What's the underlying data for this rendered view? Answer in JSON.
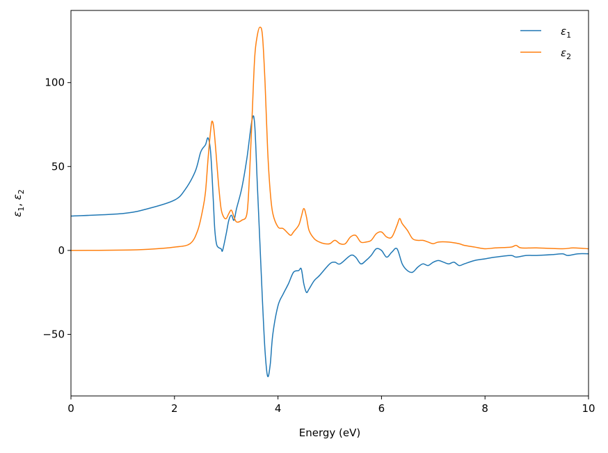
{
  "chart_data": {
    "type": "line",
    "title": "",
    "xlabel": "Energy (eV)",
    "ylabel": "ε1, ε2",
    "ylabel_parts": {
      "a": "ε",
      "a_sub": "1",
      "sep": ", ",
      "b": "ε",
      "b_sub": "2"
    },
    "xlim": [
      0,
      10
    ],
    "ylim": [
      -86.7,
      143
    ],
    "xticks": [
      0,
      2,
      4,
      6,
      8,
      10
    ],
    "yticks": [
      -50,
      0,
      50,
      100
    ],
    "ytick_labels": [
      "−50",
      "0",
      "50",
      "100"
    ],
    "grid": false,
    "legend_position": "top-right",
    "series": [
      {
        "name": "ε1",
        "name_base": "ε",
        "name_sub": "1",
        "color": "#1f77b4",
        "x": [
          0,
          1,
          1.5,
          2,
          2.2,
          2.4,
          2.5,
          2.55,
          2.6,
          2.65,
          2.7,
          2.75,
          2.78,
          2.82,
          2.9,
          2.93,
          3.0,
          3.05,
          3.1,
          3.15,
          3.2,
          3.3,
          3.4,
          3.5,
          3.55,
          3.6,
          3.65,
          3.7,
          3.75,
          3.8,
          3.85,
          3.9,
          4.0,
          4.1,
          4.2,
          4.3,
          4.4,
          4.45,
          4.5,
          4.55,
          4.6,
          4.7,
          4.8,
          5.0,
          5.1,
          5.2,
          5.4,
          5.5,
          5.6,
          5.7,
          5.8,
          5.9,
          6.0,
          6.1,
          6.2,
          6.3,
          6.4,
          6.5,
          6.6,
          6.7,
          6.8,
          6.9,
          7.0,
          7.1,
          7.2,
          7.3,
          7.4,
          7.5,
          7.6,
          7.8,
          8.0,
          8.2,
          8.5,
          8.6,
          8.8,
          9.0,
          9.3,
          9.5,
          9.6,
          9.8,
          10
        ],
        "y": [
          20.5,
          22,
          25,
          30,
          36,
          47,
          58,
          61,
          63,
          67,
          58,
          30,
          12,
          3,
          1,
          0,
          10,
          18,
          21,
          18,
          25,
          37,
          55,
          78,
          75,
          40,
          5,
          -30,
          -60,
          -75,
          -68,
          -50,
          -33,
          -26,
          -20,
          -13,
          -12,
          -11,
          -20,
          -25,
          -23,
          -18,
          -15,
          -8,
          -7,
          -8,
          -3,
          -4,
          -8,
          -6,
          -3,
          1,
          0,
          -4,
          -1,
          1,
          -8,
          -12,
          -13,
          -10,
          -8,
          -9,
          -7,
          -6,
          -7,
          -8,
          -7,
          -9,
          -8,
          -6,
          -5,
          -4,
          -3,
          -4,
          -3,
          -3,
          -2.5,
          -2,
          -3,
          -2,
          -2
        ]
      },
      {
        "name": "ε2",
        "name_base": "ε",
        "name_sub": "2",
        "color": "#ff7f0e",
        "x": [
          0,
          1,
          1.5,
          2,
          2.3,
          2.45,
          2.55,
          2.6,
          2.65,
          2.7,
          2.73,
          2.77,
          2.85,
          2.9,
          2.95,
          3.0,
          3.05,
          3.1,
          3.15,
          3.2,
          3.3,
          3.4,
          3.45,
          3.5,
          3.55,
          3.6,
          3.65,
          3.7,
          3.75,
          3.8,
          3.85,
          3.9,
          4.0,
          4.1,
          4.2,
          4.25,
          4.3,
          4.4,
          4.45,
          4.5,
          4.55,
          4.6,
          4.7,
          4.8,
          4.9,
          5.0,
          5.1,
          5.2,
          5.3,
          5.4,
          5.5,
          5.6,
          5.7,
          5.8,
          5.9,
          6.0,
          6.1,
          6.2,
          6.3,
          6.35,
          6.4,
          6.5,
          6.6,
          6.7,
          6.8,
          6.9,
          7.0,
          7.1,
          7.3,
          7.5,
          7.6,
          7.8,
          8.0,
          8.2,
          8.5,
          8.6,
          8.7,
          9.0,
          9.5,
          9.7,
          10
        ],
        "y": [
          0,
          0.2,
          0.7,
          2,
          4,
          12,
          25,
          35,
          55,
          72,
          77,
          70,
          40,
          25,
          20,
          19,
          22,
          24,
          20,
          17,
          18,
          22,
          45,
          80,
          115,
          128,
          133,
          128,
          100,
          60,
          35,
          22,
          14,
          13,
          10,
          9,
          11,
          15,
          20,
          25,
          20,
          12,
          7,
          5,
          4,
          4,
          6,
          4,
          4,
          8,
          9,
          5,
          5,
          6,
          10,
          11,
          8,
          8,
          15,
          19,
          16,
          12,
          7,
          6,
          6,
          5,
          4,
          5,
          5,
          4,
          3,
          2,
          1,
          1.5,
          2,
          3,
          1.5,
          1.5,
          1,
          1.5,
          1
        ]
      }
    ]
  }
}
